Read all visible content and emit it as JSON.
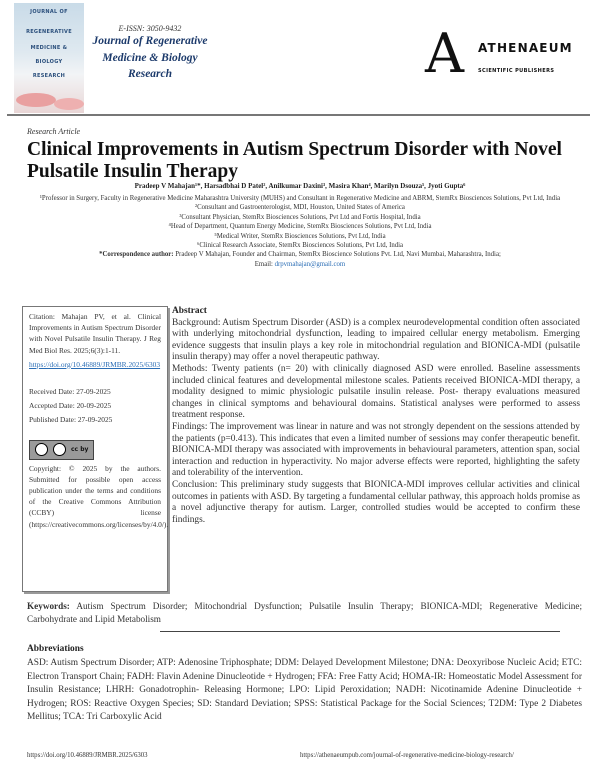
{
  "header": {
    "cover_lines": [
      "JOURNAL OF",
      "REGENERATIVE",
      "MEDICINE &",
      "BIOLOGY",
      "RESEARCH"
    ],
    "issn": "E-ISSN: 3050-9432",
    "journal_title_lines": [
      "Journal of Regenerative",
      "Medicine & Biology",
      "Research"
    ],
    "publisher_logo_letter": "A",
    "publisher_name": "ATHENAEUM",
    "publisher_sub": "SCIENTIFIC PUBLISHERS"
  },
  "article": {
    "type": "Research Article",
    "title": "Clinical Improvements in Autism Spectrum Disorder with Novel Pulsatile Insulin Therapy",
    "authors": "Pradeep V Mahajan¹*, Harsadbhai D Patel², Anilkumar Daxini³, Masira Khan⁴, Marilyn Dsouza⁵, Jyoti Gupta⁶",
    "affiliations": [
      "¹Professor in Surgery, Faculty in Regenerative Medicine Maharashtra University (MUHS) and Consultant in Regenerative Medicine and ABRM, StemRx Biosciences Solutions, Pvt Ltd, India",
      "²Consultant and Gastroenterologist, MDI, Houston, United States of America",
      "³Consultant Physician, StemRx Biosciences Solutions, Pvt Ltd and Fortis Hospital, India",
      "⁴Head of Department, Quantum Energy Medicine, StemRx Biosciences Solutions, Pvt Ltd, India",
      "⁵Medical Writer, StemRx Biosciences Solutions, Pvt Ltd, India",
      "⁶Clinical Research Associate, StemRx Biosciences Solutions, Pvt Ltd, India"
    ],
    "correspondence_label": "*Correspondence author:",
    "correspondence": "Pradeep V Mahajan, Founder and Chairman, StemRx Bioscience Solutions Pvt. Ltd, Navi Mumbai, Maharashtra, India;",
    "email_label": "Email:",
    "email": "drpvmahajan@gmail.com"
  },
  "sidebar": {
    "citation": "Citation: Mahajan PV, et al. Clinical Improvements in Autism Spectrum Disorder with Novel Pulsatile Insulin Therapy. J Reg Med Biol Res. 2025;6(3):1-11.",
    "doi_link": "https://doi.org/10.46889/JRMBR.2025/6303",
    "received": "Received Date: 27-09-2025",
    "accepted": "Accepted Date: 20-09-2025",
    "published": "Published Date: 27-09-2025",
    "license_badge": "cc by",
    "copyright": "Copyright: © 2025 by the authors. Submitted for possible open access publication under the terms and conditions of the Creative Commons Attribution (CCBY) license (https://creativecommons.org/licenses/by/4.0/)."
  },
  "abstract": {
    "heading": "Abstract",
    "background": "Background: Autism Spectrum Disorder (ASD) is a complex neurodevelopmental condition often associated with underlying mitochondrial dysfunction, leading to impaired cellular energy metabolism. Emerging evidence suggests that insulin plays a key role in mitochondrial regulation and BIONICA-MDI (pulsatile insulin therapy) may offer a novel therapeutic pathway.",
    "methods": "Methods: Twenty patients (n= 20) with clinically diagnosed ASD were enrolled. Baseline assessments included clinical features and developmental milestone scales. Patients received BIONICA-MDI therapy, a modality designed to mimic physiologic pulsatile insulin release. Post- therapy evaluations measured changes in clinical symptoms and behavioural domains. Statistical analyses were performed to assess treatment response.",
    "findings": "Findings: The improvement was linear in nature and was not strongly dependent on the sessions attended by the patients (p=0.413). This indicates that even a limited number of sessions may confer therapeutic benefit. BIONICA-MDI therapy was associated with improvements in behavioural parameters, attention span, social interaction and reduction in hyperactivity. No major adverse effects were reported, highlighting the safety and tolerability of the intervention.",
    "conclusion": "Conclusion: This preliminary study suggests that BIONICA-MDI improves cellular activities and clinical outcomes in patients with ASD. By targeting a fundamental cellular pathway, this approach holds promise as a novel adjunctive therapy for autism. Larger, controlled studies would be accepted to confirm these findings."
  },
  "keywords": {
    "label": "Keywords:",
    "text": "Autism Spectrum Disorder; Mitochondrial Dysfunction; Pulsatile Insulin Therapy; BIONICA-MDI; Regenerative Medicine; Carbohydrate and Lipid Metabolism"
  },
  "abbreviations": {
    "heading": "Abbreviations",
    "text": "ASD: Autism Spectrum Disorder; ATP: Adenosine Triphosphate; DDM: Delayed Development Milestone; DNA: Deoxyribose Nucleic Acid; ETC: Electron Transport Chain; FADH: Flavin Adenine Dinucleotide + Hydrogen; FFA: Free Fatty Acid; HOMA-IR: Homeostatic Model Assessment for Insulin Resistance; LHRH: Gonadotrophin- Releasing Hormone; LPO: Lipid Peroxidation; NADH: Nicotinamide Adenine Dinucleotide + Hydrogen; ROS: Reactive Oxygen Species; SD: Standard Deviation; SPSS: Statistical Package for the Social Sciences; T2DM: Type 2 Diabetes Mellitus; TCA: Tri Carboxylic Acid"
  },
  "footer": {
    "doi": "https://doi.org/10.46889/JRMBR.2025/6303",
    "journal_url": "https://athenaeumpub.com/journal-of-regenerative-medicine-biology-research/"
  },
  "colors": {
    "journal_title": "#1c3a6b",
    "link": "#2a6db5"
  }
}
